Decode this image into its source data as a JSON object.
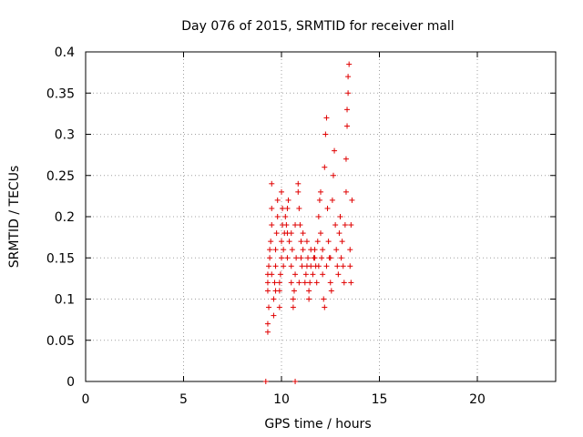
{
  "chart_data": {
    "type": "scatter",
    "title": "Day 076 of 2015, SRMTID for receiver mall",
    "xlabel": "GPS time / hours",
    "ylabel": "SRMTID / TECUs",
    "xlim": [
      0,
      24
    ],
    "ylim": [
      0,
      0.4
    ],
    "xticks": [
      0,
      5,
      10,
      15,
      20
    ],
    "xtick_labels": [
      "0",
      "5",
      "10",
      "15",
      "20"
    ],
    "yticks": [
      0,
      0.05,
      0.1,
      0.15,
      0.2,
      0.25,
      0.3,
      0.35,
      0.4
    ],
    "ytick_labels": [
      "0",
      "0.05",
      "0.1",
      "0.15",
      "0.2",
      "0.25",
      "0.3",
      "0.35",
      "0.4"
    ],
    "grid": true,
    "marker": "+",
    "color": "#e00000",
    "series": [
      {
        "name": "SRMTID",
        "points": [
          [
            9.2,
            0.0
          ],
          [
            10.7,
            0.0
          ],
          [
            9.3,
            0.06
          ],
          [
            9.3,
            0.07
          ],
          [
            9.35,
            0.09
          ],
          [
            9.3,
            0.11
          ],
          [
            9.3,
            0.12
          ],
          [
            9.3,
            0.13
          ],
          [
            9.35,
            0.14
          ],
          [
            9.4,
            0.15
          ],
          [
            9.4,
            0.16
          ],
          [
            9.45,
            0.17
          ],
          [
            9.5,
            0.19
          ],
          [
            9.5,
            0.21
          ],
          [
            9.5,
            0.24
          ],
          [
            9.6,
            0.08
          ],
          [
            9.6,
            0.1
          ],
          [
            9.65,
            0.12
          ],
          [
            9.7,
            0.14
          ],
          [
            9.7,
            0.16
          ],
          [
            9.75,
            0.18
          ],
          [
            9.8,
            0.2
          ],
          [
            9.8,
            0.22
          ],
          [
            9.9,
            0.09
          ],
          [
            9.9,
            0.11
          ],
          [
            9.95,
            0.13
          ],
          [
            10.0,
            0.15
          ],
          [
            10.0,
            0.17
          ],
          [
            10.05,
            0.19
          ],
          [
            10.05,
            0.21
          ],
          [
            10.0,
            0.23
          ],
          [
            10.1,
            0.16
          ],
          [
            10.15,
            0.18
          ],
          [
            10.2,
            0.2
          ],
          [
            10.25,
            0.19
          ],
          [
            10.3,
            0.21
          ],
          [
            10.35,
            0.22
          ],
          [
            10.3,
            0.18
          ],
          [
            10.4,
            0.17
          ],
          [
            10.5,
            0.12
          ],
          [
            10.5,
            0.14
          ],
          [
            10.55,
            0.16
          ],
          [
            10.6,
            0.1
          ],
          [
            10.6,
            0.09
          ],
          [
            10.65,
            0.11
          ],
          [
            10.7,
            0.13
          ],
          [
            10.75,
            0.15
          ],
          [
            10.85,
            0.23
          ],
          [
            10.85,
            0.24
          ],
          [
            10.9,
            0.21
          ],
          [
            10.95,
            0.19
          ],
          [
            11.0,
            0.17
          ],
          [
            11.0,
            0.15
          ],
          [
            11.05,
            0.14
          ],
          [
            11.1,
            0.16
          ],
          [
            11.2,
            0.12
          ],
          [
            11.25,
            0.13
          ],
          [
            11.3,
            0.14
          ],
          [
            11.35,
            0.15
          ],
          [
            11.4,
            0.11
          ],
          [
            11.4,
            0.1
          ],
          [
            11.45,
            0.12
          ],
          [
            11.5,
            0.14
          ],
          [
            11.6,
            0.13
          ],
          [
            11.65,
            0.15
          ],
          [
            11.7,
            0.16
          ],
          [
            11.75,
            0.14
          ],
          [
            11.8,
            0.12
          ],
          [
            11.85,
            0.17
          ],
          [
            11.9,
            0.2
          ],
          [
            11.95,
            0.22
          ],
          [
            12.0,
            0.23
          ],
          [
            12.0,
            0.18
          ],
          [
            12.05,
            0.15
          ],
          [
            12.1,
            0.13
          ],
          [
            12.15,
            0.1
          ],
          [
            12.2,
            0.09
          ],
          [
            12.2,
            0.26
          ],
          [
            12.25,
            0.3
          ],
          [
            12.3,
            0.32
          ],
          [
            12.35,
            0.21
          ],
          [
            12.4,
            0.17
          ],
          [
            12.45,
            0.15
          ],
          [
            12.5,
            0.12
          ],
          [
            12.55,
            0.11
          ],
          [
            12.6,
            0.22
          ],
          [
            12.65,
            0.25
          ],
          [
            12.7,
            0.28
          ],
          [
            12.75,
            0.19
          ],
          [
            12.8,
            0.16
          ],
          [
            12.85,
            0.14
          ],
          [
            12.9,
            0.13
          ],
          [
            12.95,
            0.18
          ],
          [
            13.0,
            0.2
          ],
          [
            13.05,
            0.15
          ],
          [
            13.1,
            0.17
          ],
          [
            13.15,
            0.14
          ],
          [
            13.2,
            0.12
          ],
          [
            13.25,
            0.19
          ],
          [
            13.3,
            0.23
          ],
          [
            13.3,
            0.27
          ],
          [
            13.35,
            0.31
          ],
          [
            13.35,
            0.33
          ],
          [
            13.4,
            0.35
          ],
          [
            13.4,
            0.37
          ],
          [
            13.45,
            0.385
          ],
          [
            13.5,
            0.16
          ],
          [
            13.5,
            0.14
          ],
          [
            13.55,
            0.12
          ],
          [
            13.55,
            0.19
          ],
          [
            13.6,
            0.22
          ],
          [
            9.5,
            0.13
          ],
          [
            9.7,
            0.11
          ],
          [
            9.9,
            0.12
          ],
          [
            10.1,
            0.14
          ],
          [
            10.3,
            0.15
          ],
          [
            10.5,
            0.18
          ],
          [
            10.7,
            0.19
          ],
          [
            10.9,
            0.12
          ],
          [
            11.1,
            0.18
          ],
          [
            11.3,
            0.17
          ],
          [
            11.5,
            0.16
          ],
          [
            11.7,
            0.15
          ],
          [
            11.9,
            0.14
          ],
          [
            12.1,
            0.16
          ],
          [
            12.3,
            0.14
          ],
          [
            12.5,
            0.15
          ]
        ]
      }
    ]
  }
}
